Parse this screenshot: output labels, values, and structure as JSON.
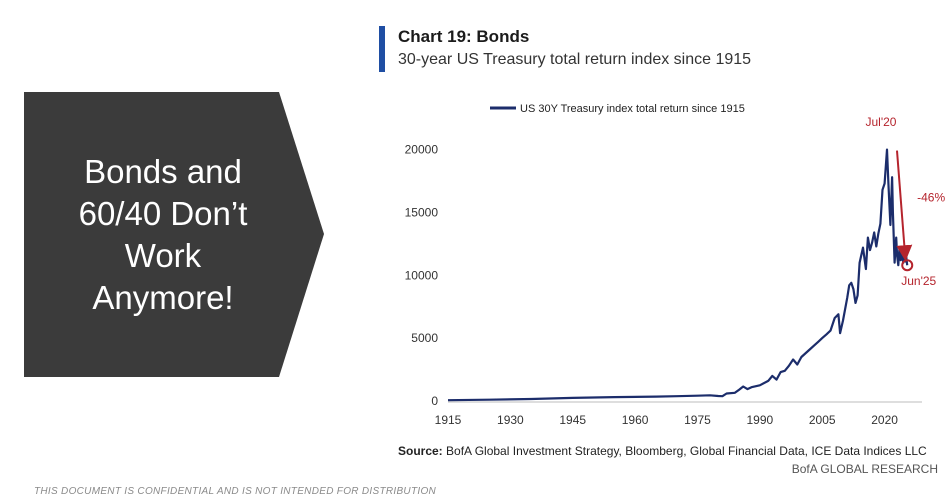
{
  "callout": {
    "text": "Bonds and\n60/40 Don’t\nWork\nAnymore!",
    "background": "#3b3b3b"
  },
  "chart_header": {
    "title": "Chart 19: Bonds",
    "subtitle": "30-year US Treasury total return index since 1915",
    "accent": "#1f4ea3"
  },
  "chart_data": {
    "type": "line",
    "title": "Chart 19: Bonds",
    "subtitle": "30-year US Treasury total return index since 1915",
    "legend": {
      "position": "top-left",
      "entries": [
        "US 30Y Treasury index total return since 1915"
      ]
    },
    "xlim": [
      1915,
      2029
    ],
    "ylim": [
      0,
      21000
    ],
    "x_ticks": [
      1915,
      1930,
      1945,
      1960,
      1975,
      1990,
      2005,
      2020
    ],
    "y_ticks": [
      0,
      5000,
      10000,
      15000,
      20000
    ],
    "grid": false,
    "series": [
      {
        "name": "US 30Y Treasury index total return since 1915",
        "color": "#1c2d6b",
        "x": [
          1915,
          1925,
          1935,
          1945,
          1955,
          1965,
          1970,
          1975,
          1978,
          1980,
          1981,
          1982,
          1984,
          1985,
          1986,
          1987,
          1988,
          1990,
          1992,
          1993,
          1994,
          1995,
          1996,
          1997,
          1998,
          1999,
          2000,
          2002,
          2003,
          2004,
          2005,
          2006,
          2007,
          2008,
          2008.9,
          2009.3,
          2010,
          2011,
          2011.5,
          2012,
          2012.5,
          2013,
          2013.5,
          2014,
          2014.8,
          2015.5,
          2016,
          2016.5,
          2017,
          2017.5,
          2018,
          2018.5,
          2019,
          2019.5,
          2020,
          2020.58,
          2020.9,
          2021,
          2021.4,
          2021.8,
          2022,
          2022.4,
          2022.8,
          2023,
          2023.3,
          2023.6,
          2023.9,
          2024.2,
          2024.5,
          2024.8,
          2025.0,
          2025.2,
          2025.45
        ],
        "values": [
          60,
          100,
          160,
          250,
          310,
          350,
          380,
          420,
          450,
          400,
          380,
          600,
          650,
          900,
          1150,
          950,
          1100,
          1250,
          1600,
          2000,
          1700,
          2300,
          2400,
          2800,
          3300,
          2900,
          3500,
          4100,
          4400,
          4700,
          5000,
          5300,
          5600,
          6600,
          6900,
          5400,
          6400,
          8200,
          9200,
          9400,
          8900,
          7800,
          8400,
          11000,
          12200,
          10500,
          13000,
          12000,
          12600,
          13400,
          12300,
          13300,
          14100,
          16800,
          17300,
          20000,
          17500,
          16800,
          14000,
          17800,
          15000,
          11000,
          13000,
          11600,
          10800,
          12200,
          11200,
          12000,
          11000,
          11900,
          11100,
          11500,
          10800
        ]
      }
    ],
    "annotations": [
      {
        "text": "Jul'20",
        "x": 2020.58,
        "y": 20000,
        "color": "#b5242d"
      },
      {
        "text": "-46%",
        "color": "#b5242d"
      },
      {
        "text": "Jun'25",
        "x": 2025.45,
        "y": 10800,
        "color": "#b5242d"
      }
    ]
  },
  "footer": {
    "source_label": "Source:",
    "source_text": " BofA Global Investment Strategy, Bloomberg, Global Financial Data, ICE Data Indices LLC",
    "credit": "BofA GLOBAL RESEARCH",
    "disclaimer": "THIS DOCUMENT IS CONFIDENTIAL AND IS NOT INTENDED FOR DISTRIBUTION"
  }
}
